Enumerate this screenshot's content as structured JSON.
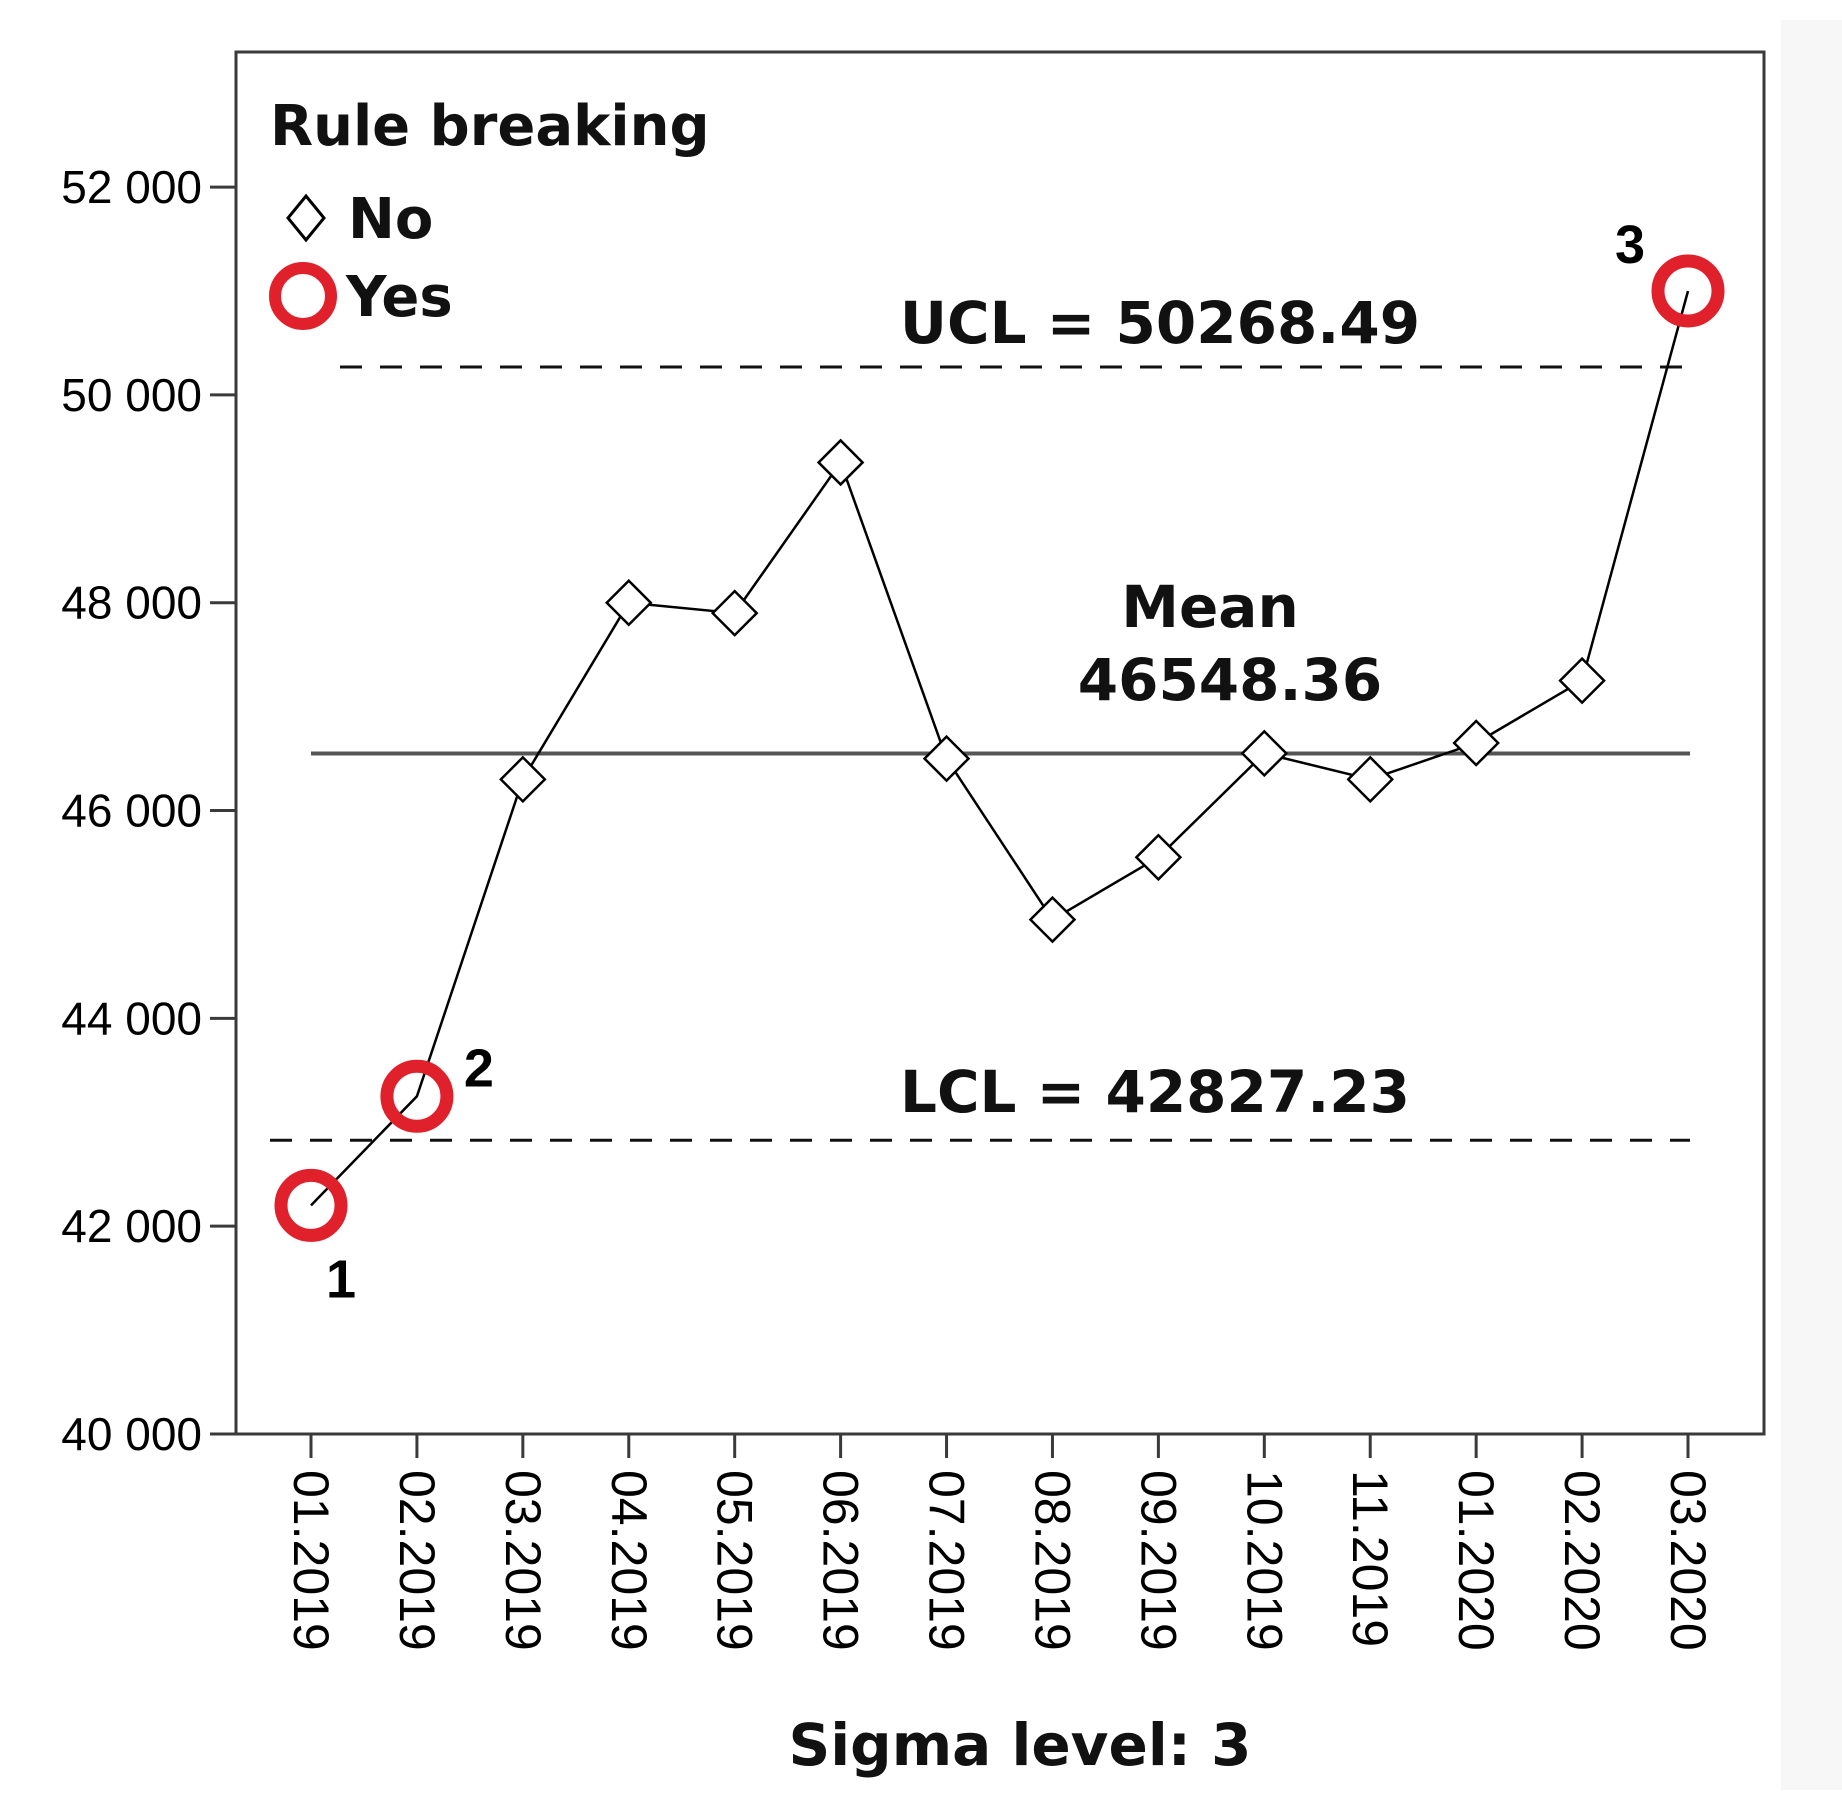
{
  "chart_data": {
    "type": "line",
    "subtype": "control-chart",
    "categories": [
      "01.2019",
      "02.2019",
      "03.2019",
      "04.2019",
      "05.2019",
      "06.2019",
      "07.2019",
      "08.2019",
      "09.2019",
      "10.2019",
      "11.2019",
      "01.2020",
      "02.2020",
      "03.2020"
    ],
    "values": [
      42200,
      43250,
      46300,
      48000,
      47900,
      49350,
      46500,
      44950,
      45550,
      46550,
      46300,
      46650,
      47250,
      51000
    ],
    "rule_breaking": [
      true,
      true,
      false,
      false,
      false,
      false,
      false,
      false,
      false,
      false,
      false,
      false,
      false,
      true
    ],
    "point_labels": [
      {
        "index": 0,
        "text": "1"
      },
      {
        "index": 1,
        "text": "2"
      },
      {
        "index": 13,
        "text": "3"
      }
    ],
    "ylim": [
      40000,
      53300
    ],
    "yticks": [
      40000,
      42000,
      44000,
      46000,
      48000,
      50000,
      52000
    ],
    "ytick_labels": [
      "40 000",
      "42 000",
      "44 000",
      "46 000",
      "48 000",
      "50 000",
      "52 000"
    ],
    "ucl": 50268.49,
    "mean": 46548.36,
    "lcl": 42827.23,
    "ucl_label": "UCL = 50268.49",
    "mean_label_line1": "Mean",
    "mean_label_line2": "46548.36",
    "lcl_label": "LCL = 42827.23",
    "xlabel": "Sigma level: 3",
    "ylabel": "",
    "legend": {
      "title": "Rule breaking",
      "no": "No",
      "yes": "Yes",
      "placement": "top-left"
    },
    "grid": false,
    "colors": {
      "line": "#000000",
      "rule_break_marker": "#e0202a",
      "normal_marker_fill": "#ffffff",
      "limit_line": "#111111",
      "mean_line": "#555555"
    }
  }
}
